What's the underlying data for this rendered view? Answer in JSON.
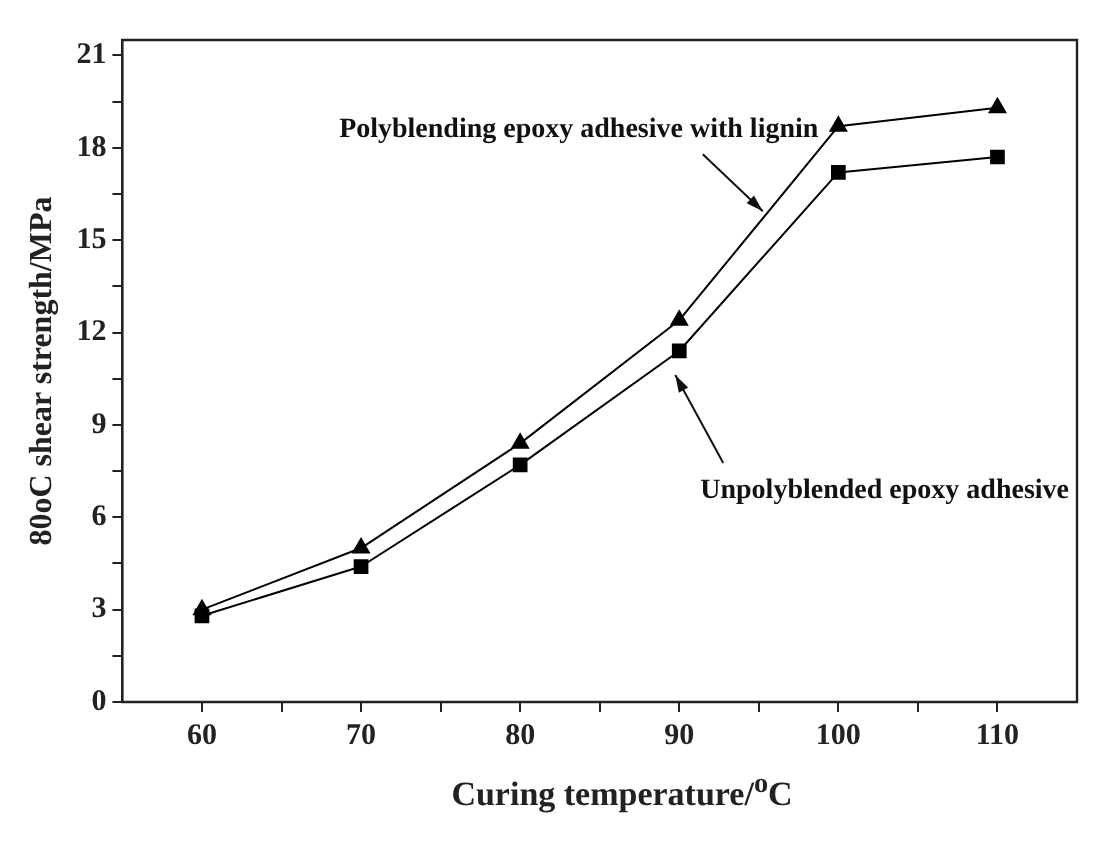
{
  "chart_data": {
    "type": "line",
    "xlabel": "Curing temperature/$^{o}$C",
    "ylabel": "80oC shear strength/MPa",
    "x": [
      60,
      70,
      80,
      90,
      100,
      110
    ],
    "series": [
      {
        "name": "Polyblending epoxy adhesive with lignin",
        "color": "#000000",
        "marker": "triangle",
        "values": [
          3.0,
          5.0,
          8.4,
          12.4,
          18.7,
          19.3
        ]
      },
      {
        "name": "Unpolyblended epoxy adhesive",
        "color": "#000000",
        "marker": "square",
        "values": [
          2.8,
          4.4,
          7.7,
          11.4,
          17.2,
          17.7
        ]
      }
    ],
    "xlim": [
      55,
      115
    ],
    "xticks": [
      60,
      {
        "value": 65,
        "label": null
      },
      70,
      {
        "value": 75,
        "label": null
      },
      80,
      {
        "value": 85,
        "label": null
      },
      90,
      {
        "value": 95,
        "label": null
      },
      100,
      {
        "value": 105,
        "label": null
      },
      110
    ],
    "ylim": [
      0,
      21.5
    ],
    "yticks": [
      0,
      {
        "value": 1.5,
        "label": null
      },
      3,
      {
        "value": 4.5,
        "label": null
      },
      6,
      {
        "value": 7.5,
        "label": null
      },
      9,
      {
        "value": 10.5,
        "label": null
      },
      12,
      {
        "value": 13.5,
        "label": null
      },
      15,
      {
        "value": 16.5,
        "label": null
      },
      18,
      {
        "value": 19.5,
        "label": null
      },
      21
    ],
    "grid": false,
    "legend": false,
    "line_style": "solid"
  }
}
